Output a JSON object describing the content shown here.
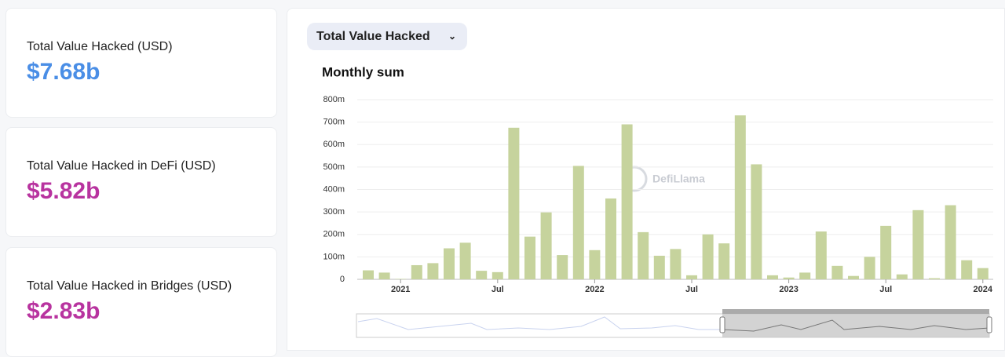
{
  "cards": [
    {
      "label": "Total Value Hacked (USD)",
      "value": "$7.68b",
      "color": "#4a8ee6"
    },
    {
      "label": "Total Value Hacked in DeFi (USD)",
      "value": "$5.82b",
      "color": "#b8339f"
    },
    {
      "label": "Total Value Hacked in Bridges (USD)",
      "value": "$2.83b",
      "color": "#b8339f"
    }
  ],
  "dropdown": "Total Value Hacked",
  "watermark": "DefiLlama",
  "chart_data": {
    "type": "bar",
    "title": "Monthly sum",
    "color": "#c6d39d",
    "grid": true,
    "categories": [
      null,
      null,
      "2021",
      null,
      null,
      null,
      null,
      null,
      "Jul",
      null,
      null,
      null,
      null,
      null,
      "2022",
      null,
      null,
      null,
      null,
      null,
      "Jul",
      null,
      null,
      null,
      null,
      null,
      "2023",
      null,
      null,
      null,
      null,
      null,
      "Jul",
      null,
      null,
      null,
      null,
      null,
      "2024"
    ],
    "values": [
      40,
      30,
      2,
      63,
      72,
      138,
      163,
      38,
      32,
      675,
      190,
      298,
      108,
      505,
      130,
      360,
      690,
      210,
      105,
      135,
      18,
      200,
      160,
      730,
      512,
      18,
      8,
      30,
      213,
      60,
      15,
      100,
      238,
      22,
      308,
      5,
      330,
      85,
      50
    ],
    "ylim": [
      0,
      800
    ],
    "yticks": [
      0,
      {
        "value": 100,
        "label": "100m"
      },
      {
        "value": 200,
        "label": "200m"
      },
      {
        "value": 300,
        "label": "300m"
      },
      {
        "value": 400,
        "label": "400m"
      },
      {
        "value": 500,
        "label": "500m"
      },
      {
        "value": 600,
        "label": "600m"
      },
      {
        "value": 700,
        "label": "700m"
      },
      {
        "value": 800,
        "label": "800m"
      }
    ]
  }
}
